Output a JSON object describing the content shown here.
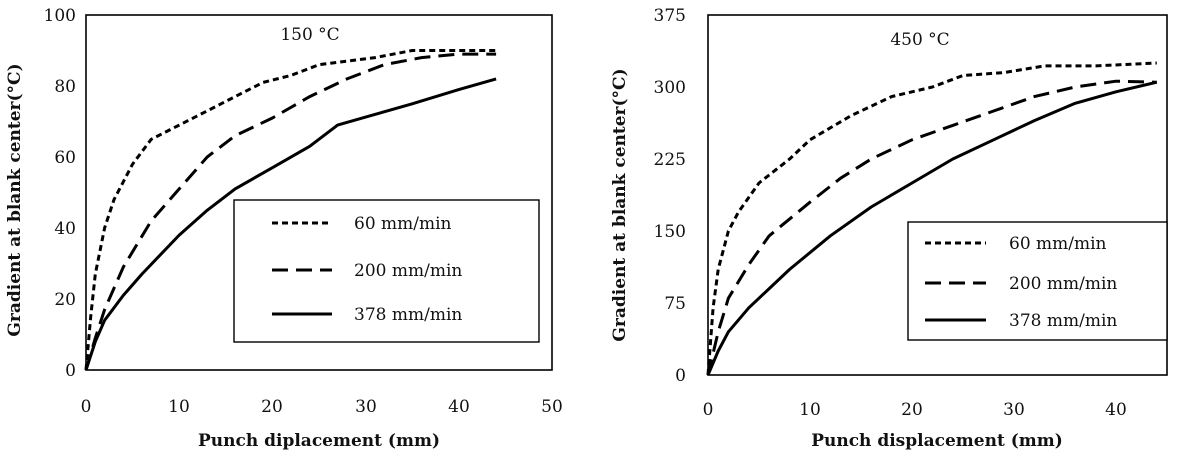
{
  "chart_data": [
    {
      "type": "line",
      "annotation": "150 °C",
      "xlabel": "Punch diplacement (mm)",
      "ylabel": "Gradient at blank center(°C)",
      "xlim": [
        0,
        50
      ],
      "ylim": [
        0,
        100
      ],
      "xticks": [
        "0",
        "10",
        "20",
        "30",
        "40",
        "50"
      ],
      "yticks": [
        "0",
        "20",
        "40",
        "60",
        "80",
        "100"
      ],
      "grid": false,
      "legend_position": "lower-right",
      "series": [
        {
          "name": "60 mm/min",
          "dash": "short-dash",
          "x": [
            0,
            0.5,
            1,
            2,
            3,
            5,
            7,
            10,
            13,
            16,
            19,
            22,
            25,
            28,
            31,
            35,
            40,
            44
          ],
          "y": [
            0,
            15,
            27,
            40,
            48,
            58,
            65,
            69,
            73,
            77,
            81,
            83,
            86,
            87,
            88,
            90,
            90,
            90
          ]
        },
        {
          "name": "200 mm/min",
          "dash": "long-dash",
          "x": [
            0,
            1,
            2,
            4,
            7,
            10,
            13,
            16,
            20,
            24,
            28,
            32,
            36,
            40,
            44
          ],
          "y": [
            0,
            9,
            17,
            29,
            42,
            51,
            60,
            66,
            71,
            77,
            82,
            86,
            88,
            89,
            89
          ]
        },
        {
          "name": "378 mm/min",
          "dash": "solid",
          "x": [
            0,
            1,
            2,
            4,
            6,
            10,
            13,
            16,
            20,
            24,
            27,
            31,
            35,
            40,
            44
          ],
          "y": [
            0,
            8,
            14,
            21,
            27,
            38,
            45,
            51,
            57,
            63,
            69,
            72,
            75,
            79,
            82
          ]
        }
      ]
    },
    {
      "type": "line",
      "annotation": "450 °C",
      "xlabel": "Punch displacement (mm)",
      "ylabel": "Gradient at blank center(°C)",
      "xlim": [
        0,
        45
      ],
      "ylim": [
        0,
        375
      ],
      "xticks": [
        "0",
        "10",
        "20",
        "30",
        "40"
      ],
      "yticks": [
        "0",
        "75",
        "150",
        "225",
        "300",
        "375"
      ],
      "grid": false,
      "legend_position": "lower-right",
      "series": [
        {
          "name": "60 mm/min",
          "dash": "short-dash",
          "x": [
            0,
            0.5,
            1,
            2,
            3,
            5,
            8,
            10,
            14,
            18,
            22,
            25,
            29,
            33,
            38,
            44
          ],
          "y": [
            0,
            70,
            110,
            150,
            170,
            200,
            225,
            245,
            270,
            290,
            300,
            312,
            315,
            322,
            322,
            325
          ]
        },
        {
          "name": "200 mm/min",
          "dash": "long-dash",
          "x": [
            0,
            1,
            2,
            4,
            6,
            10,
            13,
            16,
            20,
            24,
            28,
            32,
            36,
            40,
            44
          ],
          "y": [
            0,
            45,
            80,
            115,
            145,
            180,
            205,
            225,
            245,
            260,
            275,
            290,
            300,
            306,
            305
          ]
        },
        {
          "name": "378 mm/min",
          "dash": "solid",
          "x": [
            0,
            1,
            2,
            4,
            6,
            8,
            12,
            16,
            20,
            24,
            28,
            32,
            36,
            40,
            44
          ],
          "y": [
            0,
            25,
            45,
            70,
            90,
            110,
            145,
            175,
            200,
            225,
            245,
            265,
            283,
            295,
            305
          ]
        }
      ]
    }
  ]
}
